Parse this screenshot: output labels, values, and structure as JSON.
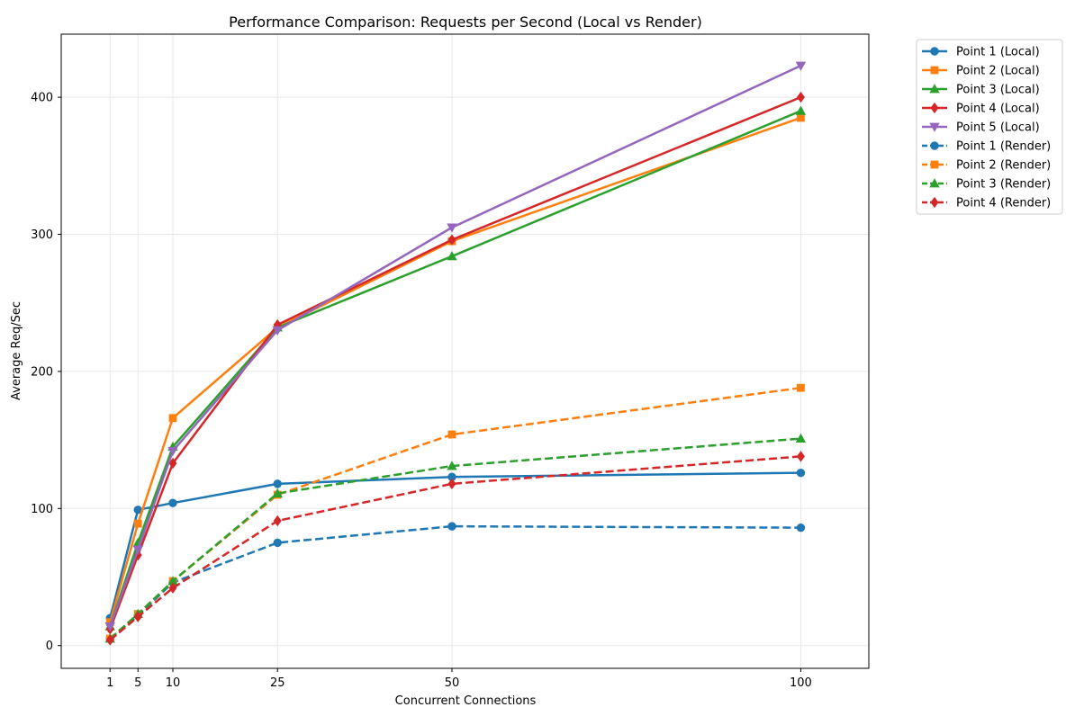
{
  "chart_data": {
    "type": "line",
    "title": "Performance Comparison: Requests per Second (Local vs Render)",
    "xlabel": "Concurrent Connections",
    "ylabel": "Average Req/Sec",
    "x": [
      1,
      5,
      10,
      25,
      50,
      100
    ],
    "x_tick_labels": [
      "1",
      "5",
      "10",
      "25",
      "50",
      "100"
    ],
    "y_ticks": [
      0,
      100,
      200,
      300,
      400
    ],
    "y_tick_labels": [
      "0",
      "100",
      "200",
      "300",
      "400"
    ],
    "xlim": [
      -6,
      109.75
    ],
    "ylim": [
      -16.6,
      446.0
    ],
    "grid": true,
    "legend_position": "outside-right-top",
    "series": [
      {
        "name": "Point 1 (Local)",
        "values": [
          20,
          99,
          104,
          118,
          123,
          126
        ],
        "color": "#1f77b4",
        "marker": "circle",
        "line_style": "solid"
      },
      {
        "name": "Point 2 (Local)",
        "values": [
          17,
          89,
          166,
          232,
          295,
          385
        ],
        "color": "#ff7f0e",
        "marker": "square",
        "line_style": "solid"
      },
      {
        "name": "Point 3 (Local)",
        "values": [
          14,
          75,
          145,
          232,
          284,
          390
        ],
        "color": "#2ca02c",
        "marker": "triangle-up",
        "line_style": "solid"
      },
      {
        "name": "Point 4 (Local)",
        "values": [
          12,
          66,
          133,
          234,
          296,
          400
        ],
        "color": "#d62728",
        "marker": "diamond",
        "line_style": "solid"
      },
      {
        "name": "Point 5 (Local)",
        "values": [
          14,
          70,
          142,
          230,
          305,
          423
        ],
        "color": "#9467bd",
        "marker": "triangle-down",
        "line_style": "solid"
      },
      {
        "name": "Point 1 (Render)",
        "values": [
          5,
          22,
          46,
          75,
          87,
          86
        ],
        "color": "#1f77b4",
        "marker": "circle",
        "line_style": "dashed"
      },
      {
        "name": "Point 2 (Render)",
        "values": [
          5,
          23,
          47,
          110,
          154,
          188
        ],
        "color": "#ff7f0e",
        "marker": "square",
        "line_style": "dashed"
      },
      {
        "name": "Point 3 (Render)",
        "values": [
          5,
          23,
          47,
          111,
          131,
          151
        ],
        "color": "#2ca02c",
        "marker": "triangle-up",
        "line_style": "dashed"
      },
      {
        "name": "Point 4 (Render)",
        "values": [
          4,
          21,
          42,
          91,
          118,
          138
        ],
        "color": "#d62728",
        "marker": "diamond",
        "line_style": "dashed"
      }
    ]
  }
}
